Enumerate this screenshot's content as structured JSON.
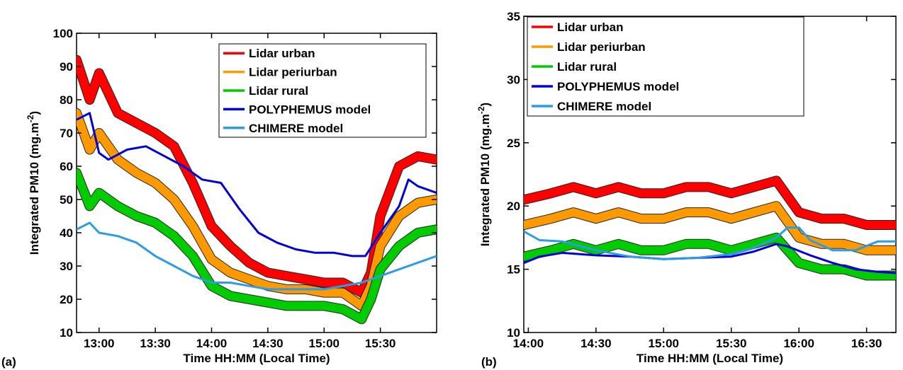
{
  "chart_data": [
    {
      "panel_label": "(a)",
      "type": "line",
      "xlabel": "Time HH:MM (Local Time)",
      "ylabel": "Integrated PM10 (mg.m",
      "ylabel_sup": "-2",
      "ylabel_close": ")",
      "xlim": [
        "12:48",
        "16:00"
      ],
      "ylim": [
        10,
        100
      ],
      "xticks": [
        "13:00",
        "13:30",
        "14:00",
        "14:30",
        "15:00",
        "15:30"
      ],
      "yticks": [
        10,
        20,
        30,
        40,
        50,
        60,
        70,
        80,
        90,
        100
      ],
      "legend_position": "top-right",
      "legend": [
        "Lidar urban",
        "Lidar periurban",
        "Lidar rural",
        "POLYPHEMUS model",
        "CHIMERE model"
      ],
      "series": [
        {
          "name": "Lidar urban",
          "color": "#ff0000",
          "x": [
            "12:48",
            "12:55",
            "13:00",
            "13:10",
            "13:20",
            "13:30",
            "13:40",
            "13:50",
            "14:00",
            "14:10",
            "14:20",
            "14:30",
            "14:40",
            "14:50",
            "15:00",
            "15:10",
            "15:20",
            "15:25",
            "15:30",
            "15:40",
            "15:50",
            "16:00"
          ],
          "y": [
            92,
            80,
            88,
            76,
            73,
            70,
            66,
            55,
            42,
            36,
            31,
            28,
            27,
            26,
            25,
            25,
            22,
            28,
            45,
            60,
            63,
            62
          ]
        },
        {
          "name": "Lidar periurban",
          "color": "#ff9900",
          "x": [
            "12:48",
            "12:55",
            "13:00",
            "13:10",
            "13:20",
            "13:30",
            "13:40",
            "13:50",
            "14:00",
            "14:10",
            "14:20",
            "14:30",
            "14:40",
            "14:50",
            "15:00",
            "15:10",
            "15:20",
            "15:25",
            "15:30",
            "15:40",
            "15:50",
            "16:00"
          ],
          "y": [
            76,
            65,
            70,
            62,
            58,
            55,
            50,
            42,
            32,
            28,
            26,
            24,
            23,
            23,
            22,
            22,
            18,
            24,
            36,
            45,
            49,
            50
          ]
        },
        {
          "name": "Lidar rural",
          "color": "#00cc00",
          "x": [
            "12:48",
            "12:55",
            "13:00",
            "13:10",
            "13:20",
            "13:30",
            "13:40",
            "13:50",
            "14:00",
            "14:10",
            "14:20",
            "14:30",
            "14:40",
            "14:50",
            "15:00",
            "15:10",
            "15:20",
            "15:25",
            "15:30",
            "15:40",
            "15:50",
            "16:00"
          ],
          "y": [
            58,
            48,
            52,
            48,
            45,
            43,
            39,
            33,
            24,
            21,
            20,
            19,
            18,
            18,
            18,
            17,
            14,
            20,
            29,
            36,
            40,
            41
          ]
        },
        {
          "name": "POLYPHEMUS model",
          "color": "#0000dd",
          "x": [
            "12:48",
            "12:55",
            "13:00",
            "13:05",
            "13:15",
            "13:25",
            "13:35",
            "13:45",
            "13:55",
            "14:05",
            "14:15",
            "14:25",
            "14:35",
            "14:45",
            "14:55",
            "15:05",
            "15:15",
            "15:22",
            "15:30",
            "15:40",
            "15:45",
            "15:50",
            "16:00"
          ],
          "y": [
            74,
            76,
            64,
            62,
            65,
            66,
            63,
            60,
            56,
            55,
            47,
            40,
            37,
            35,
            34,
            34,
            33,
            33,
            40,
            48,
            56,
            54,
            52
          ]
        },
        {
          "name": "CHIMERE model",
          "color": "#2b9ce8",
          "x": [
            "12:48",
            "12:55",
            "13:00",
            "13:10",
            "13:20",
            "13:30",
            "13:40",
            "13:50",
            "14:00",
            "14:10",
            "14:20",
            "14:30",
            "14:40",
            "14:50",
            "15:00",
            "15:10",
            "15:20",
            "15:30",
            "15:40",
            "15:50",
            "16:00"
          ],
          "y": [
            41,
            43,
            40,
            39,
            37,
            33,
            30,
            27,
            25,
            25,
            24,
            23,
            23,
            23,
            23,
            24,
            25,
            27,
            29,
            31,
            33
          ]
        }
      ]
    },
    {
      "panel_label": "(b)",
      "type": "line",
      "xlabel": "Time HH:MM (Local Time)",
      "ylabel": "Integrated PM10 (mg.m",
      "ylabel_sup": "-2",
      "ylabel_close": ")",
      "xlim": [
        "13:58",
        "16:43"
      ],
      "ylim": [
        10,
        35
      ],
      "xticks": [
        "14:00",
        "14:30",
        "15:00",
        "15:30",
        "16:00",
        "16:30"
      ],
      "yticks": [
        10,
        15,
        20,
        25,
        30,
        35
      ],
      "legend_position": "top-left",
      "legend": [
        "Lidar urban",
        "Lidar periurban",
        "Lidar rural",
        "POLYPHEMUS model",
        "CHIMERE model"
      ],
      "series": [
        {
          "name": "Lidar urban",
          "color": "#ff0000",
          "x": [
            "13:58",
            "14:10",
            "14:20",
            "14:30",
            "14:40",
            "14:50",
            "15:00",
            "15:10",
            "15:20",
            "15:30",
            "15:40",
            "15:50",
            "16:00",
            "16:10",
            "16:20",
            "16:30",
            "16:43"
          ],
          "y": [
            20.5,
            21,
            21.5,
            21,
            21.5,
            21,
            21,
            21.5,
            21.5,
            21,
            21.5,
            22,
            19.5,
            19,
            19,
            18.5,
            18.5
          ]
        },
        {
          "name": "Lidar periurban",
          "color": "#ff9900",
          "x": [
            "13:58",
            "14:10",
            "14:20",
            "14:30",
            "14:40",
            "14:50",
            "15:00",
            "15:10",
            "15:20",
            "15:30",
            "15:40",
            "15:50",
            "16:00",
            "16:10",
            "16:20",
            "16:30",
            "16:43"
          ],
          "y": [
            18.5,
            19,
            19.5,
            19,
            19.5,
            19,
            19,
            19.5,
            19.5,
            19,
            19.5,
            20,
            17.5,
            17,
            17,
            16.5,
            16.5
          ]
        },
        {
          "name": "Lidar rural",
          "color": "#00cc00",
          "x": [
            "13:58",
            "14:10",
            "14:20",
            "14:30",
            "14:40",
            "14:50",
            "15:00",
            "15:10",
            "15:20",
            "15:30",
            "15:40",
            "15:50",
            "16:00",
            "16:10",
            "16:20",
            "16:30",
            "16:43"
          ],
          "y": [
            16,
            16.5,
            17,
            16.5,
            17,
            16.5,
            16.5,
            17,
            17,
            16.5,
            17,
            17.5,
            15.5,
            15,
            15,
            14.5,
            14.5
          ]
        },
        {
          "name": "POLYPHEMUS model",
          "color": "#0000dd",
          "x": [
            "13:58",
            "14:05",
            "14:15",
            "14:30",
            "14:45",
            "15:00",
            "15:15",
            "15:30",
            "15:40",
            "15:50",
            "15:55",
            "16:05",
            "16:15",
            "16:25",
            "16:35",
            "16:43"
          ],
          "y": [
            15.5,
            16,
            16.3,
            16.1,
            16,
            15.8,
            15.9,
            16,
            16.4,
            17,
            16.8,
            16.1,
            15.5,
            15,
            14.8,
            14.7
          ]
        },
        {
          "name": "CHIMERE model",
          "color": "#2b9ce8",
          "x": [
            "13:58",
            "14:05",
            "14:15",
            "14:30",
            "14:45",
            "15:00",
            "15:15",
            "15:30",
            "15:40",
            "15:50",
            "15:55",
            "16:00",
            "16:05",
            "16:15",
            "16:25",
            "16:35",
            "16:43"
          ],
          "y": [
            18,
            17.3,
            17.2,
            16.5,
            16,
            15.8,
            15.9,
            16.2,
            16.7,
            17.5,
            18.3,
            18.3,
            17.3,
            16.5,
            16.5,
            17.2,
            17.2
          ]
        }
      ]
    }
  ]
}
